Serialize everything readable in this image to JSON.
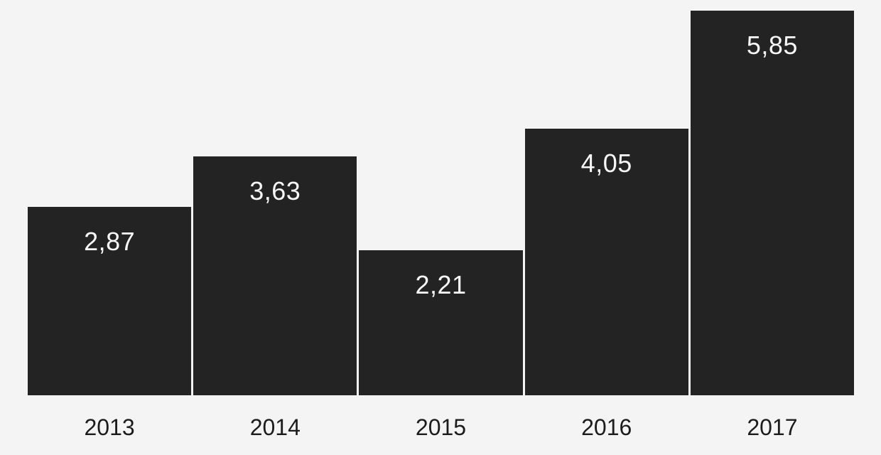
{
  "chart_data": {
    "type": "bar",
    "title": "",
    "xlabel": "",
    "ylabel": "",
    "categories": [
      "2013",
      "2014",
      "2015",
      "2016",
      "2017"
    ],
    "values": [
      2.87,
      3.63,
      2.21,
      4.05,
      5.85
    ],
    "value_labels": [
      "2,87",
      "3,63",
      "2,21",
      "4,05",
      "5,85"
    ],
    "decimal_separator": ",",
    "ylim": [
      0,
      6.0
    ],
    "grid": false,
    "legend": false,
    "axes_visible": false,
    "value_label_position": "inside-top",
    "colors": {
      "background": "#f4f4f4",
      "bar": "#232323",
      "value_label": "#f7f7f7",
      "category_label": "#1c1c1c"
    }
  }
}
